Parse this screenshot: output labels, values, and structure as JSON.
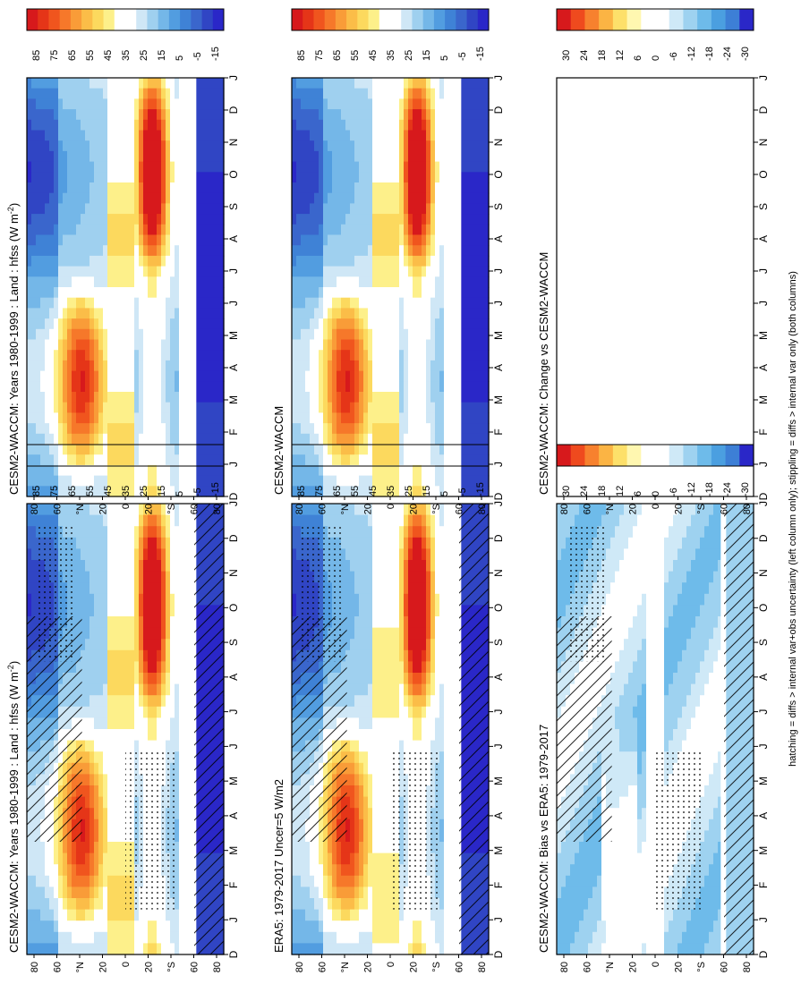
{
  "footnote": "hatching = diffs > internal var+obs uncertainty (left column only); stippling = diffs > internal var only (both columns)",
  "colors": {
    "field_scale": [
      "#d7191c",
      "#e53518",
      "#f0551e",
      "#f6782a",
      "#f99c38",
      "#fbbd48",
      "#fcd95e",
      "#fdf08a",
      "#ffffff",
      "#ffffff",
      "#cfe7f6",
      "#9fd0ef",
      "#74b7e8",
      "#529de0",
      "#3f82d6",
      "#3a66cc",
      "#3045c4",
      "#2a27c8"
    ],
    "diff_scale": [
      "#d7191c",
      "#ef4a1e",
      "#f7812e",
      "#fbb444",
      "#fde06a",
      "#fff7b0",
      "#ffffff",
      "#ffffff",
      "#cfe9f7",
      "#9ed2f0",
      "#6ebbea",
      "#4b9fe0",
      "#3d7fd6",
      "#2a27c8"
    ]
  },
  "chart_data": [
    {
      "id": "p1",
      "type": "heatmap",
      "title": "CESM2-WACCM: Years 1980-1999 : Land : hfss (W m",
      "title_sup": "-2",
      "title_end": ")",
      "x": [
        "D",
        "J",
        "F",
        "M",
        "A",
        "M",
        "J",
        "J",
        "A",
        "S",
        "O",
        "N",
        "D",
        "J"
      ],
      "y_ticks": [
        "80",
        "60",
        "°N",
        "20",
        "0",
        "20",
        "°S",
        "60",
        "80"
      ],
      "colorbar": [
        "85",
        "75",
        "65",
        "55",
        "45",
        "35",
        "25",
        "15",
        "5",
        "-5",
        "-15"
      ],
      "hatching": true,
      "stippling": true
    },
    {
      "id": "p2",
      "type": "heatmap",
      "title": "CESM2-WACCM: Years 1980-1999 : Land : hfss (W m",
      "title_sup": "-2",
      "title_end": ")",
      "x": [
        "D",
        "J",
        "F",
        "M",
        "A",
        "M",
        "J",
        "J",
        "A",
        "S",
        "O",
        "N",
        "D",
        "J"
      ],
      "y_ticks": [
        "80",
        "60",
        "°N",
        "20",
        "0",
        "20",
        "°S",
        "60",
        "80"
      ],
      "colorbar": [
        "85",
        "75",
        "65",
        "55",
        "45",
        "35",
        "25",
        "15",
        "5",
        "-5",
        "-15"
      ],
      "hatching": false,
      "stippling": false
    },
    {
      "id": "p3",
      "type": "heatmap",
      "title": "ERA5: 1979-2017 Uncer=5 W/m2",
      "title_sup": "",
      "title_end": "",
      "x": [
        "D",
        "J",
        "F",
        "M",
        "A",
        "M",
        "J",
        "J",
        "A",
        "S",
        "O",
        "N",
        "D",
        "J"
      ],
      "y_ticks": [
        "80",
        "60",
        "°N",
        "20",
        "0",
        "20",
        "°S",
        "60",
        "80"
      ],
      "colorbar": [
        "85",
        "75",
        "65",
        "55",
        "45",
        "35",
        "25",
        "15",
        "5",
        "-5",
        "-15"
      ],
      "hatching": true,
      "stippling": true
    },
    {
      "id": "p4",
      "type": "heatmap",
      "title": "CESM2-WACCM",
      "title_sup": "",
      "title_end": "",
      "x": [
        "D",
        "J",
        "F",
        "M",
        "A",
        "M",
        "J",
        "J",
        "A",
        "S",
        "O",
        "N",
        "D",
        "J"
      ],
      "y_ticks": [
        "80",
        "60",
        "°N",
        "20",
        "0",
        "20",
        "°S",
        "60",
        "80"
      ],
      "colorbar": [
        "85",
        "75",
        "65",
        "55",
        "45",
        "35",
        "25",
        "15",
        "5",
        "-5",
        "-15"
      ],
      "hatching": false,
      "stippling": false
    },
    {
      "id": "p5",
      "type": "heatmap",
      "title": "CESM2-WACCM: Bias vs ERA5: 1979-2017",
      "title_sup": "",
      "title_end": "",
      "x": [
        "D",
        "J",
        "F",
        "M",
        "A",
        "M",
        "J",
        "J",
        "A",
        "S",
        "O",
        "N",
        "D",
        "J"
      ],
      "y_ticks": [
        "80",
        "60",
        "°N",
        "20",
        "0",
        "20",
        "°S",
        "60",
        "80"
      ],
      "colorbar": [
        "30",
        "24",
        "18",
        "12",
        "6",
        "0",
        "-6",
        "-12",
        "-18",
        "-24",
        "-30"
      ],
      "hatching": true,
      "stippling": true
    },
    {
      "id": "p6",
      "type": "heatmap",
      "title": "CESM2-WACCM: Change vs CESM2-WACCM",
      "title_sup": "",
      "title_end": "",
      "x": [
        "D",
        "J",
        "F",
        "M",
        "A",
        "M",
        "J",
        "J",
        "A",
        "S",
        "O",
        "N",
        "D",
        "J"
      ],
      "y_ticks": [
        "80",
        "60",
        "°N",
        "20",
        "0",
        "20",
        "°S",
        "60",
        "80"
      ],
      "colorbar": [
        "30",
        "24",
        "18",
        "12",
        "6",
        "0",
        "-6",
        "-12",
        "-18",
        "-24",
        "-30"
      ],
      "hatching": false,
      "stippling": false,
      "empty": true
    }
  ]
}
